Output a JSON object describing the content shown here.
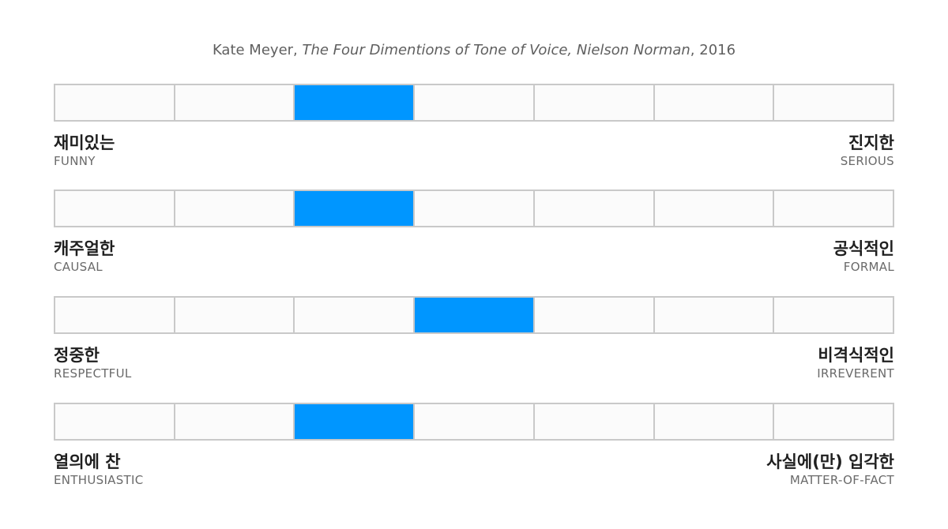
{
  "citation": {
    "author": "Kate Meyer, ",
    "work": "The Four Dimentions of Tone of Voice",
    "sep": ", ",
    "publisher": "Nielson Norman",
    "year": ", 2016"
  },
  "scale_steps": 7,
  "colors": {
    "active": "#0096ff",
    "cell": "#fbfbfb",
    "border": "#c9c9c9"
  },
  "dimensions": [
    {
      "left": {
        "ko": "재미있는",
        "en": "FUNNY"
      },
      "right": {
        "ko": "진지한",
        "en": "SERIOUS"
      },
      "selected_step": 3
    },
    {
      "left": {
        "ko": "캐주얼한",
        "en": "CAUSAL"
      },
      "right": {
        "ko": "공식적인",
        "en": "FORMAL"
      },
      "selected_step": 3
    },
    {
      "left": {
        "ko": "정중한",
        "en": "RESPECTFUL"
      },
      "right": {
        "ko": "비격식적인",
        "en": "IRREVERENT"
      },
      "selected_step": 4
    },
    {
      "left": {
        "ko": "열의에 찬",
        "en": "ENTHUSIASTIC"
      },
      "right": {
        "ko": "사실에(만) 입각한",
        "en": "MATTER-OF-FACT"
      },
      "selected_step": 3
    }
  ]
}
